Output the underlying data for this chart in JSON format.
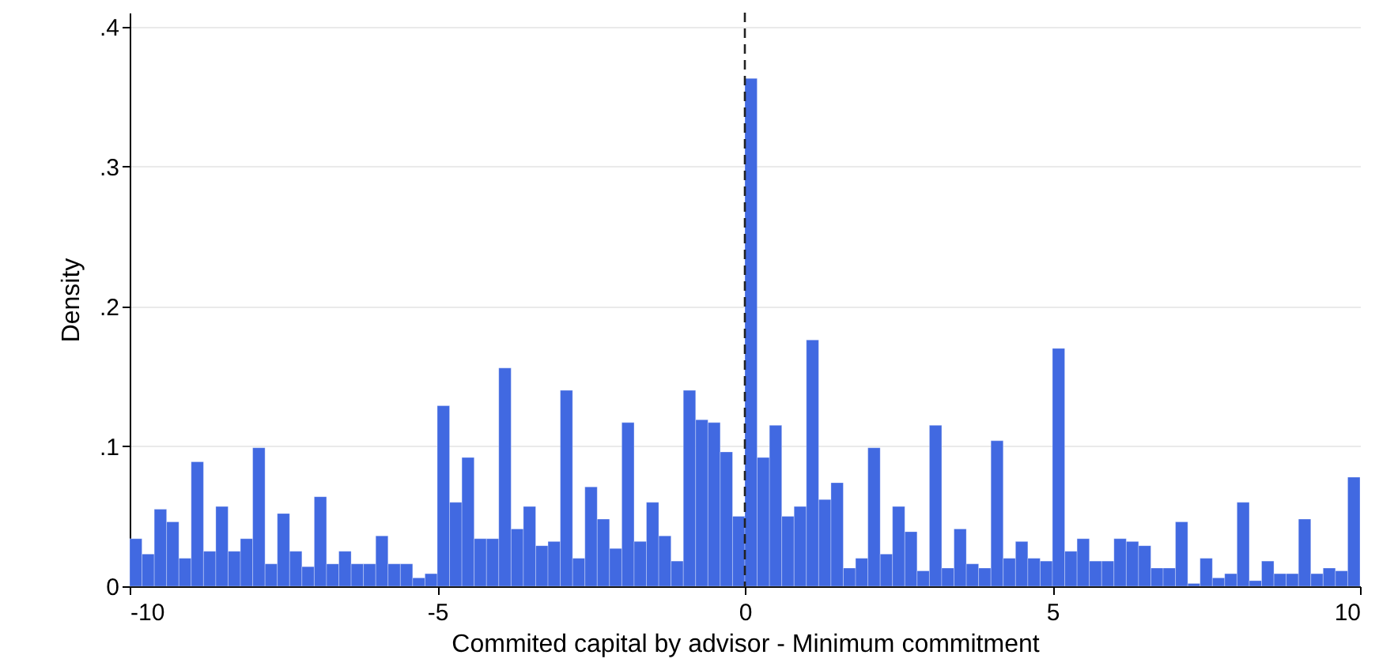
{
  "chart_data": {
    "type": "histogram",
    "xlabel": "Commited capital by advisor - Minimum commitment",
    "ylabel": "Density",
    "bins": [
      -10,
      -9.8,
      -9.6,
      -9.4,
      -9.2,
      -9,
      -8.8,
      -8.6,
      -8.4,
      -8.2,
      -8,
      -7.8,
      -7.6,
      -7.4,
      -7.2,
      -7,
      -6.8,
      -6.6,
      -6.4,
      -6.2,
      -6,
      -5.8,
      -5.6,
      -5.4,
      -5.2,
      -5,
      -4.8,
      -4.6,
      -4.4,
      -4.2,
      -4,
      -3.8,
      -3.6,
      -3.4,
      -3.2,
      -3,
      -2.8,
      -2.6,
      -2.4,
      -2.2,
      -2,
      -1.8,
      -1.6,
      -1.4,
      -1.2,
      -1,
      -0.8,
      -0.6,
      -0.4,
      -0.2,
      0,
      0.2,
      0.4,
      0.6,
      0.8,
      1,
      1.2,
      1.4,
      1.6,
      1.8,
      2,
      2.2,
      2.4,
      2.6,
      2.8,
      3,
      3.2,
      3.4,
      3.6,
      3.8,
      4,
      4.2,
      4.4,
      4.6,
      4.8,
      5,
      5.2,
      5.4,
      5.6,
      5.8,
      6,
      6.2,
      6.4,
      6.6,
      6.8,
      7,
      7.2,
      7.4,
      7.6,
      7.8,
      8,
      8.2,
      8.4,
      8.6,
      8.8,
      9,
      9.2,
      9.4,
      9.6,
      9.8,
      10
    ],
    "values": [
      0.034,
      0.023,
      0.055,
      0.046,
      0.02,
      0.089,
      0.025,
      0.057,
      0.025,
      0.034,
      0.099,
      0.016,
      0.052,
      0.025,
      0.014,
      0.064,
      0.016,
      0.025,
      0.016,
      0.016,
      0.036,
      0.016,
      0.016,
      0.006,
      0.009,
      0.129,
      0.06,
      0.092,
      0.034,
      0.034,
      0.156,
      0.041,
      0.057,
      0.029,
      0.032,
      0.14,
      0.02,
      0.071,
      0.048,
      0.027,
      0.117,
      0.032,
      0.06,
      0.036,
      0.018,
      0.14,
      0.119,
      0.117,
      0.096,
      0.05,
      0.363,
      0.092,
      0.115,
      0.05,
      0.057,
      0.176,
      0.062,
      0.074,
      0.013,
      0.02,
      0.099,
      0.023,
      0.057,
      0.039,
      0.011,
      0.115,
      0.013,
      0.041,
      0.016,
      0.013,
      0.104,
      0.02,
      0.032,
      0.02,
      0.018,
      0.17,
      0.025,
      0.034,
      0.018,
      0.018,
      0.034,
      0.032,
      0.029,
      0.013,
      0.013,
      0.046,
      0.002,
      0.02,
      0.006,
      0.009,
      0.06,
      0.004,
      0.018,
      0.009,
      0.009,
      0.048,
      0.009,
      0.013,
      0.011,
      0.078
    ],
    "color": "#4169e1",
    "xlim": [
      -10,
      10
    ],
    "ylim": [
      0,
      0.41
    ],
    "xticks": [
      -10,
      -5,
      0,
      5,
      10
    ],
    "yticks": [
      0,
      {
        "value": 0.1,
        "label": ".1"
      },
      {
        "value": 0.2,
        "label": ".2"
      },
      {
        "value": 0.3,
        "label": ".3"
      },
      {
        "value": 0.4,
        "label": ".4"
      }
    ],
    "grid": "y",
    "ref_lines": [
      {
        "axis": "x",
        "value": 0,
        "color": "#222222",
        "line_style": "dashed"
      }
    ]
  }
}
